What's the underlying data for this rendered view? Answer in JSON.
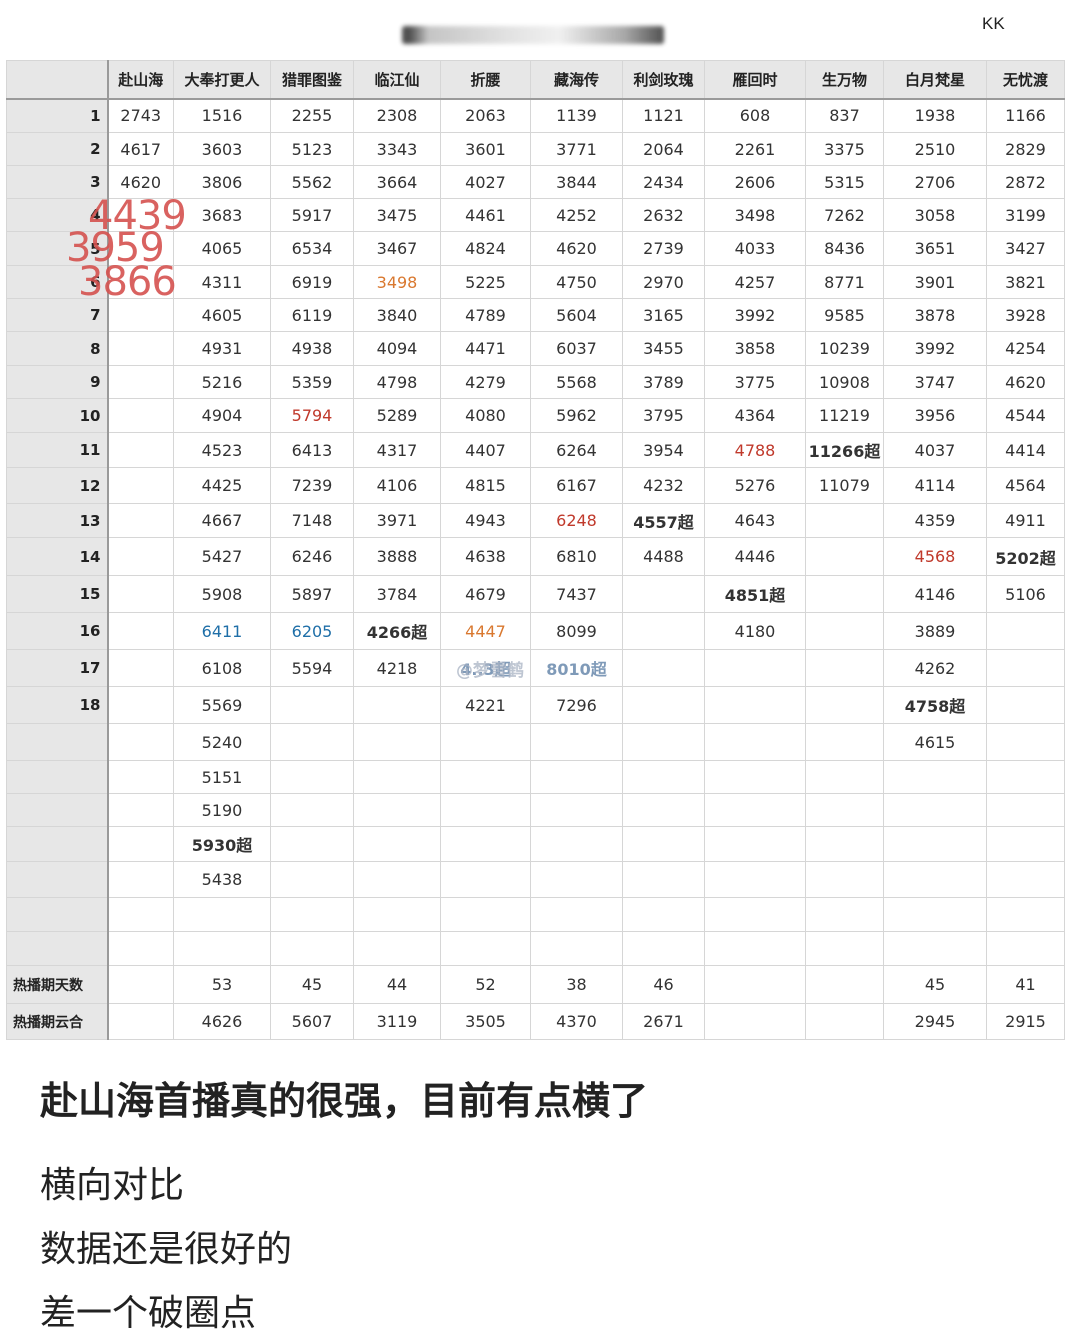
{
  "header": {
    "blurred_title": "",
    "corner_label": "KK"
  },
  "table": {
    "columns": [
      "赴山海",
      "大奉打更人",
      "猎罪图鉴",
      "临江仙",
      "折腰",
      "藏海传",
      "利剑玫瑰",
      "雁回时",
      "生万物",
      "白月梵星",
      "无忧渡"
    ],
    "rows": [
      {
        "label": "1",
        "cells": [
          "2743",
          "1516",
          "2255",
          "2308",
          "2063",
          "1139",
          "1121",
          "608",
          "837",
          "1938",
          "1166"
        ]
      },
      {
        "label": "2",
        "cells": [
          "4617",
          "3603",
          "5123",
          "3343",
          "3601",
          "3771",
          "2064",
          "2261",
          "3375",
          "2510",
          "2829"
        ]
      },
      {
        "label": "3",
        "cells": [
          "4620",
          "3806",
          "5562",
          "3664",
          "4027",
          "3844",
          "2434",
          "2606",
          "5315",
          "2706",
          "2872"
        ]
      },
      {
        "label": "4",
        "cells": [
          "",
          "3683",
          "5917",
          "3475",
          "4461",
          "4252",
          "2632",
          "3498",
          "7262",
          "3058",
          "3199"
        ]
      },
      {
        "label": "5",
        "cells": [
          "",
          "4065",
          "6534",
          "3467",
          "4824",
          "4620",
          "2739",
          "4033",
          "8436",
          "3651",
          "3427"
        ]
      },
      {
        "label": "6",
        "cells": [
          "",
          "4311",
          "6919",
          "3498",
          "5225",
          "4750",
          "2970",
          "4257",
          "8771",
          "3901",
          "3821"
        ]
      },
      {
        "label": "7",
        "cells": [
          "",
          "4605",
          "6119",
          "3840",
          "4789",
          "5604",
          "3165",
          "3992",
          "9585",
          "3878",
          "3928"
        ]
      },
      {
        "label": "8",
        "cells": [
          "",
          "4931",
          "4938",
          "4094",
          "4471",
          "6037",
          "3455",
          "3858",
          "10239",
          "3992",
          "4254"
        ]
      },
      {
        "label": "9",
        "cells": [
          "",
          "5216",
          "5359",
          "4798",
          "4279",
          "5568",
          "3789",
          "3775",
          "10908",
          "3747",
          "4620"
        ]
      },
      {
        "label": "10",
        "cells": [
          "",
          "4904",
          "5794",
          "5289",
          "4080",
          "5962",
          "3795",
          "4364",
          "11219",
          "3956",
          "4544"
        ]
      },
      {
        "label": "11",
        "cells": [
          "",
          "4523",
          "6413",
          "4317",
          "4407",
          "6264",
          "3954",
          "4788",
          "11266超",
          "4037",
          "4414"
        ]
      },
      {
        "label": "12",
        "cells": [
          "",
          "4425",
          "7239",
          "4106",
          "4815",
          "6167",
          "4232",
          "5276",
          "11079",
          "4114",
          "4564"
        ]
      },
      {
        "label": "13",
        "cells": [
          "",
          "4667",
          "7148",
          "3971",
          "4943",
          "6248",
          "4557超",
          "4643",
          "",
          "4359",
          "4911"
        ]
      },
      {
        "label": "14",
        "cells": [
          "",
          "5427",
          "6246",
          "3888",
          "4638",
          "6810",
          "4488",
          "4446",
          "",
          "4568",
          "5202超"
        ]
      },
      {
        "label": "15",
        "cells": [
          "",
          "5908",
          "5897",
          "3784",
          "4679",
          "7437",
          "",
          "4851超",
          "",
          "4146",
          "5106"
        ]
      },
      {
        "label": "16",
        "cells": [
          "",
          "6411",
          "6205",
          "4266超",
          "4447",
          "8099",
          "",
          "4180",
          "",
          "3889",
          ""
        ]
      },
      {
        "label": "17",
        "cells": [
          "",
          "6108",
          "5594",
          "4218",
          "",
          "",
          "",
          "",
          "",
          "4262",
          ""
        ]
      },
      {
        "label": "18",
        "cells": [
          "",
          "5569",
          "",
          "",
          "4221",
          "7296",
          "",
          "",
          "",
          "4758超",
          ""
        ]
      },
      {
        "label": "",
        "cells": [
          "",
          "5240",
          "",
          "",
          "",
          "",
          "",
          "",
          "",
          "4615",
          ""
        ]
      },
      {
        "label": "",
        "cells": [
          "",
          "5151",
          "",
          "",
          "",
          "",
          "",
          "",
          "",
          "",
          ""
        ]
      },
      {
        "label": "",
        "cells": [
          "",
          "5190",
          "",
          "",
          "",
          "",
          "",
          "",
          "",
          "",
          ""
        ]
      },
      {
        "label": "",
        "cells": [
          "",
          "5930超",
          "",
          "",
          "",
          "",
          "",
          "",
          "",
          "",
          ""
        ]
      },
      {
        "label": "",
        "cells": [
          "",
          "5438",
          "",
          "",
          "",
          "",
          "",
          "",
          "",
          "",
          ""
        ]
      },
      {
        "label": "",
        "cells": [
          "",
          "",
          "",
          "",
          "",
          "",
          "",
          "",
          "",
          "",
          ""
        ]
      },
      {
        "label": "",
        "cells": [
          "",
          "",
          "",
          "",
          "",
          "",
          "",
          "",
          "",
          "",
          ""
        ]
      },
      {
        "label": "热播期天数",
        "cells": [
          "",
          "53",
          "45",
          "44",
          "52",
          "38",
          "46",
          "",
          "",
          "45",
          "41"
        ]
      },
      {
        "label": "热播期云合",
        "cells": [
          "",
          "4626",
          "5607",
          "3119",
          "3505",
          "4370",
          "2671",
          "",
          "",
          "2945",
          "2915"
        ]
      }
    ],
    "highlights": [
      {
        "row": 5,
        "col": 4,
        "color": "orange"
      },
      {
        "row": 9,
        "col": 3,
        "color": "red"
      },
      {
        "row": 10,
        "col": 8,
        "color": "red"
      },
      {
        "row": 12,
        "col": 6,
        "color": "red"
      },
      {
        "row": 13,
        "col": 10,
        "color": "red"
      },
      {
        "row": 14,
        "col": 7,
        "color": "red"
      },
      {
        "row": 15,
        "col": 1,
        "color": "red"
      },
      {
        "row": 15,
        "col": 2,
        "color": "blue"
      },
      {
        "row": 15,
        "col": 3,
        "color": "blue"
      },
      {
        "row": 15,
        "col": 5,
        "color": "orange"
      },
      {
        "row": 17,
        "col": 9,
        "color": "red"
      },
      {
        "row": 21,
        "col": 1,
        "color": "blue"
      }
    ]
  },
  "handwritten_numbers": [
    "4439",
    "3959",
    "3866"
  ],
  "overlap_text": {
    "zheyao_17": "4..3超",
    "canghai_17": "8010超",
    "watermark": "@梦雪鹤"
  },
  "caption": {
    "headline": "赴山海首播真的很强，目前有点横了",
    "lines": [
      "横向对比",
      "数据还是很好的",
      "差一个破圈点"
    ]
  }
}
